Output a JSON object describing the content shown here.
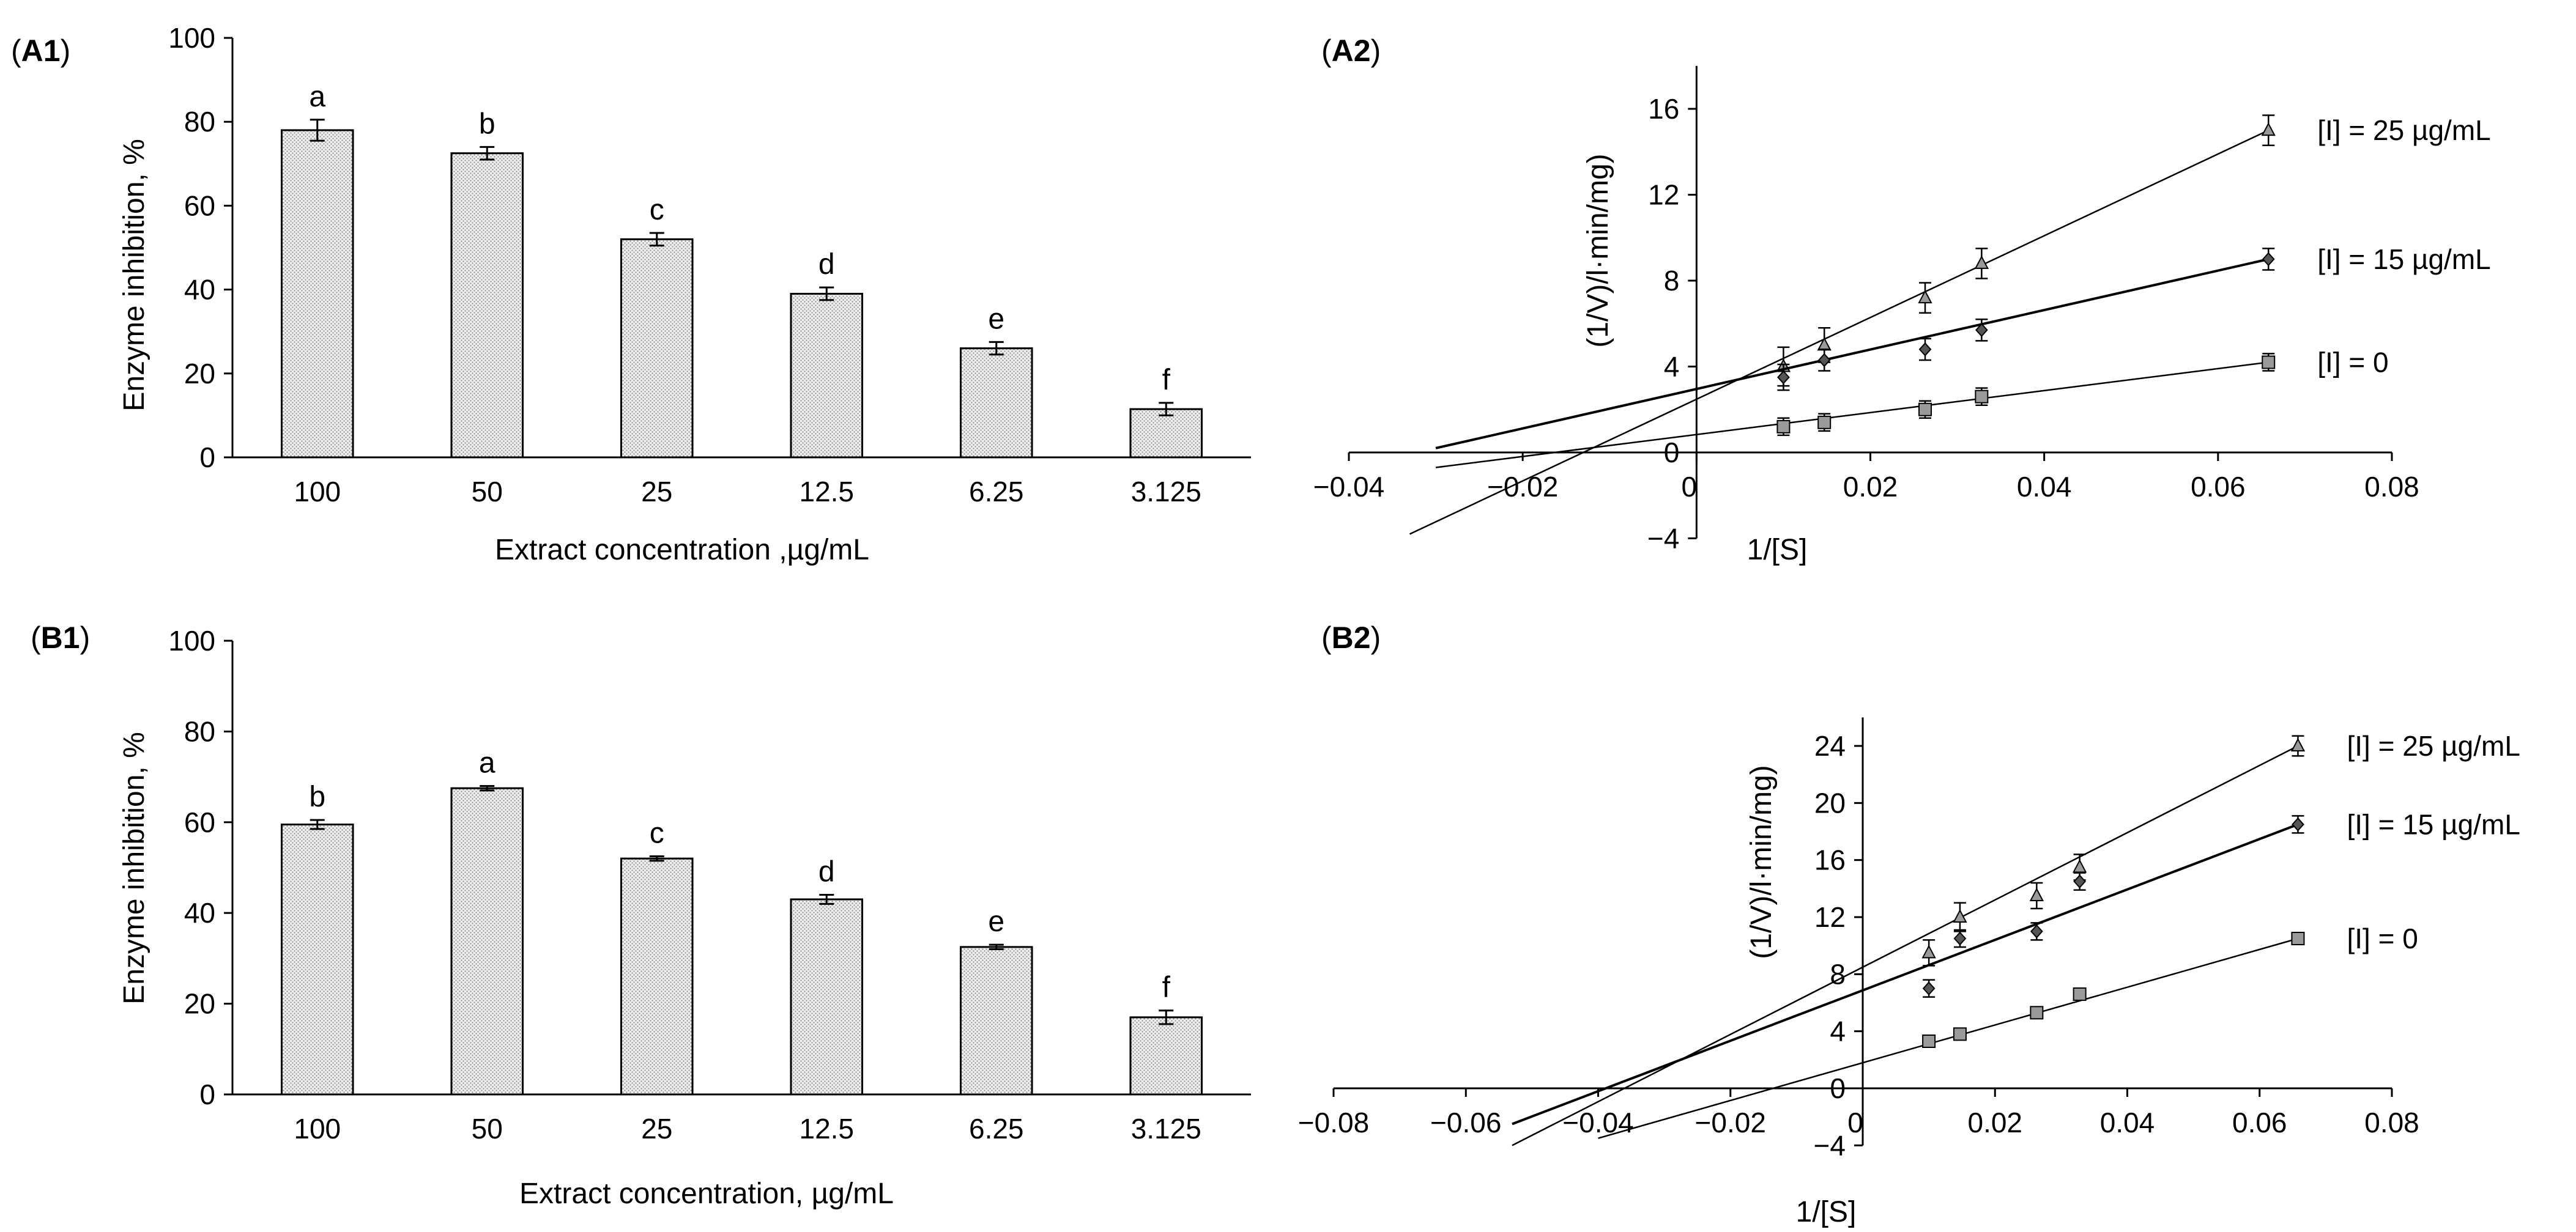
{
  "chart_data": [
    {
      "id": "A1",
      "panel_label": "A1",
      "type": "bar",
      "categories": [
        "100",
        "50",
        "25",
        "12.5",
        "6.25",
        "3.125"
      ],
      "values": [
        78,
        72.5,
        52,
        39,
        26,
        11.5
      ],
      "errors": [
        2.5,
        1.5,
        1.5,
        1.5,
        1.5,
        1.5
      ],
      "letters": [
        "a",
        "b",
        "c",
        "d",
        "e",
        "f"
      ],
      "xlabel": "Extract concentration ,µg/mL",
      "ylabel": "Enzyme inhibition, %",
      "ylim": [
        0,
        100
      ],
      "yticks": [
        "0",
        "20",
        "40",
        "60",
        "80",
        "100"
      ]
    },
    {
      "id": "A2",
      "panel_label": "A2",
      "type": "scatter",
      "xlabel": "1/[S]",
      "ylabel": "(1/V)/l·min/mg)",
      "xlim": [
        -0.04,
        0.08
      ],
      "ylim": [
        -4,
        18
      ],
      "xticks": [
        "−0.04",
        "−0.02",
        "0",
        "0.02",
        "0.04",
        "0.06",
        "0.08"
      ],
      "yticks": [
        "−4",
        "0",
        "4",
        "8",
        "12",
        "16"
      ],
      "series": [
        {
          "name": "[I] = 25 µg/mL",
          "marker": "triangle",
          "x": [
            0.01,
            0.0147,
            0.0263,
            0.0328,
            0.0658
          ],
          "y": [
            4.0,
            5.0,
            7.2,
            8.8,
            15.0
          ],
          "err": [
            0.9,
            0.8,
            0.7,
            0.7,
            0.7
          ],
          "line_x": [
            -0.033,
            0.0658
          ],
          "line_y": [
            -3.8,
            15.0
          ]
        },
        {
          "name": "[I] = 15 µg/mL",
          "marker": "diamond",
          "x": [
            0.01,
            0.0147,
            0.0263,
            0.0328,
            0.0658
          ],
          "y": [
            3.5,
            4.3,
            4.8,
            5.7,
            9.0
          ],
          "err": [
            0.6,
            0.5,
            0.5,
            0.5,
            0.5
          ],
          "line_x": [
            -0.03,
            0.0658
          ],
          "line_y": [
            0.2,
            9.0
          ]
        },
        {
          "name": "[I] = 0",
          "marker": "square",
          "x": [
            0.01,
            0.0147,
            0.0263,
            0.0328,
            0.0658
          ],
          "y": [
            1.2,
            1.4,
            2.0,
            2.6,
            4.2
          ],
          "err": [
            0.4,
            0.4,
            0.4,
            0.4,
            0.4
          ],
          "line_x": [
            -0.03,
            0.0658
          ],
          "line_y": [
            -0.7,
            4.2
          ]
        }
      ]
    },
    {
      "id": "B1",
      "panel_label": "B1",
      "type": "bar",
      "categories": [
        "100",
        "50",
        "25",
        "12.5",
        "6.25",
        "3.125"
      ],
      "values": [
        59.5,
        67.5,
        52,
        43,
        32.5,
        17
      ],
      "errors": [
        1,
        0.5,
        0.5,
        1,
        0.5,
        1.5
      ],
      "letters": [
        "b",
        "a",
        "c",
        "d",
        "e",
        "f"
      ],
      "xlabel": "Extract concentration, µg/mL",
      "ylabel": "Enzyme inhibition, %",
      "ylim": [
        0,
        100
      ],
      "yticks": [
        "0",
        "20",
        "40",
        "60",
        "80",
        "100"
      ]
    },
    {
      "id": "B2",
      "panel_label": "B2",
      "type": "scatter",
      "xlabel": "1/[S]",
      "ylabel": "(1/V)/l·min/mg)",
      "xlim": [
        -0.08,
        0.08
      ],
      "ylim": [
        -4,
        26
      ],
      "xticks": [
        "−0.08",
        "−0.06",
        "−0.04",
        "−0.02",
        "0",
        "0.02",
        "0.04",
        "0.06",
        "0.08"
      ],
      "yticks": [
        "−4",
        "0",
        "4",
        "8",
        "12",
        "16",
        "20",
        "24"
      ],
      "series": [
        {
          "name": "[I] = 25 µg/mL",
          "marker": "triangle",
          "x": [
            0.01,
            0.0147,
            0.0263,
            0.0328,
            0.0658
          ],
          "y": [
            9.5,
            12.0,
            13.5,
            15.5,
            24.0
          ],
          "err": [
            0.9,
            1.0,
            0.9,
            0.9,
            0.7
          ],
          "line_x": [
            -0.053,
            0.0658
          ],
          "line_y": [
            -4.0,
            24.0
          ]
        },
        {
          "name": "[I] = 15 µg/mL",
          "marker": "diamond",
          "x": [
            0.01,
            0.0147,
            0.0263,
            0.0328,
            0.0658
          ],
          "y": [
            7.0,
            10.5,
            11.0,
            14.5,
            18.5
          ],
          "err": [
            0.6,
            0.6,
            0.6,
            0.6,
            0.6
          ],
          "line_x": [
            -0.053,
            0.0658
          ],
          "line_y": [
            -2.5,
            18.5
          ]
        },
        {
          "name": "[I] = 0",
          "marker": "square",
          "x": [
            0.01,
            0.0147,
            0.0263,
            0.0328,
            0.0658
          ],
          "y": [
            3.3,
            3.8,
            5.3,
            6.6,
            10.5
          ],
          "err": [
            0.4,
            0.4,
            0.4,
            0.4,
            0.4
          ],
          "line_x": [
            -0.04,
            0.0658
          ],
          "line_y": [
            -3.5,
            10.5
          ]
        }
      ]
    }
  ]
}
